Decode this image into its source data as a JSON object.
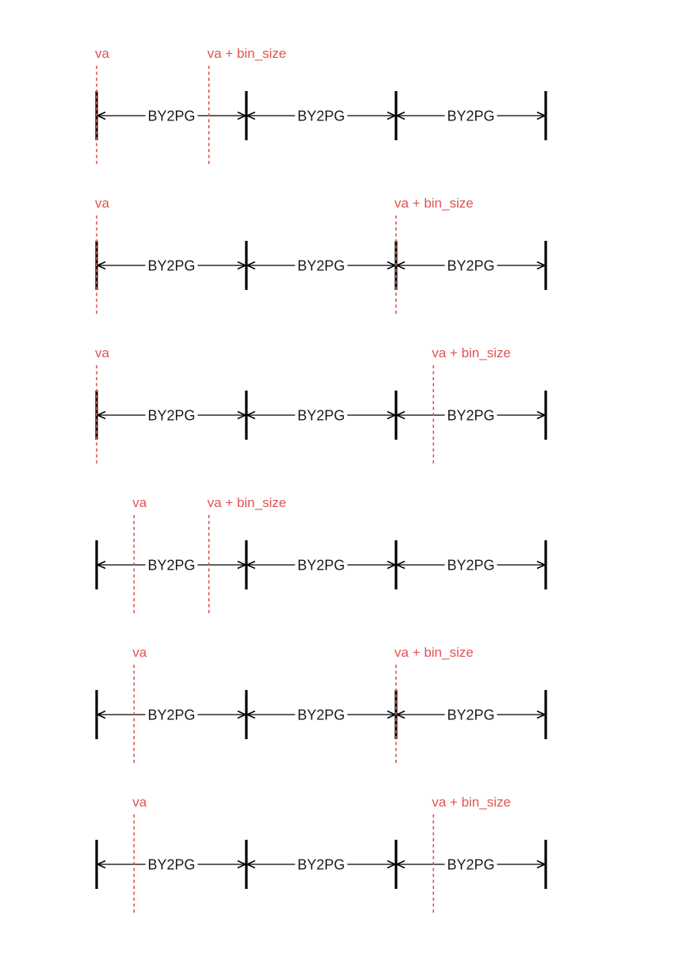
{
  "colors": {
    "page_bg": "#ffffff",
    "line": "#000000",
    "marker": "#e05252",
    "label": "#1a1a1a"
  },
  "page_boundaries": [
    "b0",
    "b1",
    "b2",
    "b3"
  ],
  "segment_label": "BY2PG",
  "rows": [
    {
      "start": {
        "label": "va",
        "at": 0.0
      },
      "end": {
        "label": "va + bin_size",
        "at": 0.75
      }
    },
    {
      "start": {
        "label": "va",
        "at": 0.0
      },
      "end": {
        "label": "va + bin_size",
        "at": 2.0
      }
    },
    {
      "start": {
        "label": "va",
        "at": 0.0
      },
      "end": {
        "label": "va + bin_size",
        "at": 2.25
      }
    },
    {
      "start": {
        "label": "va",
        "at": 0.25
      },
      "end": {
        "label": "va + bin_size",
        "at": 0.75
      }
    },
    {
      "start": {
        "label": "va",
        "at": 0.25
      },
      "end": {
        "label": "va + bin_size",
        "at": 2.0
      }
    },
    {
      "start": {
        "label": "va",
        "at": 0.25
      },
      "end": {
        "label": "va + bin_size",
        "at": 2.25
      }
    }
  ]
}
